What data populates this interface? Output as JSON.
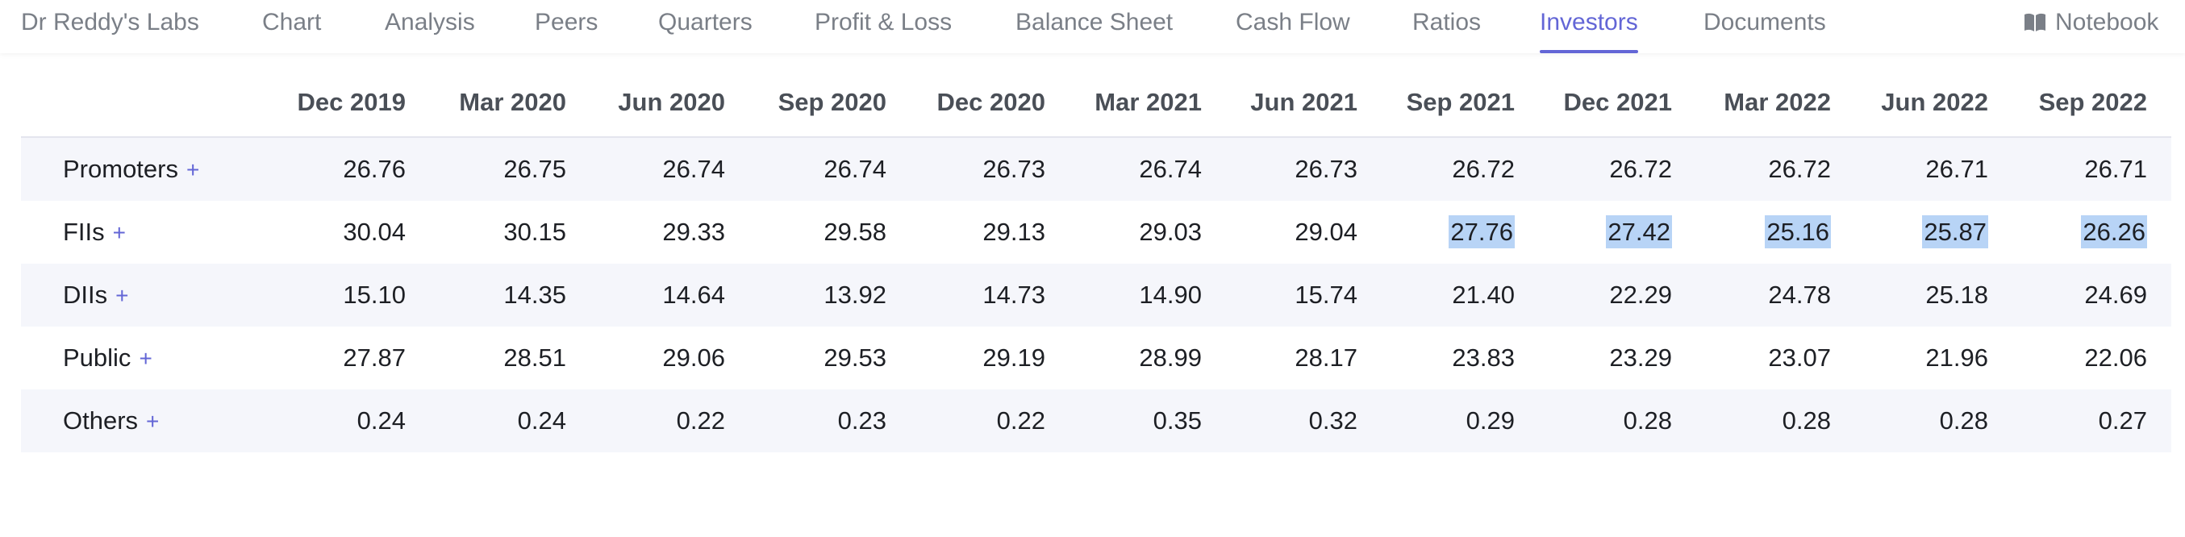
{
  "nav": {
    "items": [
      {
        "label": "Dr Reddy's Labs",
        "active": false
      },
      {
        "label": "Chart",
        "active": false
      },
      {
        "label": "Analysis",
        "active": false
      },
      {
        "label": "Peers",
        "active": false
      },
      {
        "label": "Quarters",
        "active": false
      },
      {
        "label": "Profit & Loss",
        "active": false
      },
      {
        "label": "Balance Sheet",
        "active": false
      },
      {
        "label": "Cash Flow",
        "active": false
      },
      {
        "label": "Ratios",
        "active": false
      },
      {
        "label": "Investors",
        "active": true
      },
      {
        "label": "Documents",
        "active": false
      }
    ],
    "notebook_label": "Notebook",
    "notebook_icon": "book-icon",
    "accent_color": "#6366d6"
  },
  "table": {
    "columns": [
      "Dec 2019",
      "Mar 2020",
      "Jun 2020",
      "Sep 2020",
      "Dec 2020",
      "Mar 2021",
      "Jun 2021",
      "Sep 2021",
      "Dec 2021",
      "Mar 2022",
      "Jun 2022",
      "Sep 2022"
    ],
    "rows": [
      {
        "label": "Promoters",
        "expand": "+",
        "values": [
          "26.76",
          "26.75",
          "26.74",
          "26.74",
          "26.73",
          "26.74",
          "26.73",
          "26.72",
          "26.72",
          "26.72",
          "26.71",
          "26.71"
        ],
        "highlighted": []
      },
      {
        "label": "FIIs",
        "expand": "+",
        "values": [
          "30.04",
          "30.15",
          "29.33",
          "29.58",
          "29.13",
          "29.03",
          "29.04",
          "27.76",
          "27.42",
          "25.16",
          "25.87",
          "26.26"
        ],
        "highlighted": [
          7,
          8,
          9,
          10,
          11
        ]
      },
      {
        "label": "DIIs",
        "expand": "+",
        "values": [
          "15.10",
          "14.35",
          "14.64",
          "13.92",
          "14.73",
          "14.90",
          "15.74",
          "21.40",
          "22.29",
          "24.78",
          "25.18",
          "24.69"
        ],
        "highlighted": []
      },
      {
        "label": "Public",
        "expand": "+",
        "values": [
          "27.87",
          "28.51",
          "29.06",
          "29.53",
          "29.19",
          "28.99",
          "28.17",
          "23.83",
          "23.29",
          "23.07",
          "21.96",
          "22.06"
        ],
        "highlighted": []
      },
      {
        "label": "Others",
        "expand": "+",
        "values": [
          "0.24",
          "0.24",
          "0.22",
          "0.23",
          "0.22",
          "0.35",
          "0.32",
          "0.29",
          "0.28",
          "0.28",
          "0.28",
          "0.27"
        ],
        "highlighted": []
      }
    ],
    "highlight_color": "#b8d4f6"
  }
}
